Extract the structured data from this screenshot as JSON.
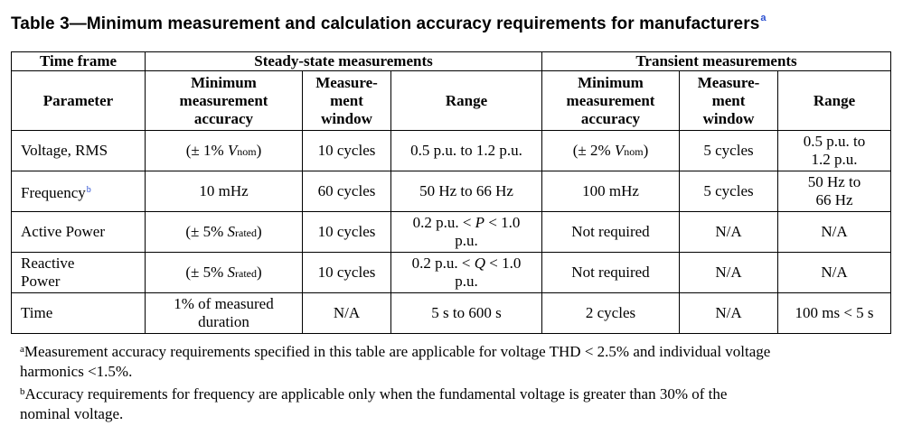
{
  "title": {
    "text": "Table 3—Minimum measurement and calculation accuracy requirements for manufacturers",
    "footnote_mark": "a"
  },
  "header": {
    "time_frame": "Time frame",
    "steady_state": "Steady-state measurements",
    "transient": "Transient measurements",
    "parameter": "Parameter",
    "min_accuracy_1": "Minimum",
    "min_accuracy_2": "measurement",
    "min_accuracy_3": "accuracy",
    "window_1": "Measure-",
    "window_2": "ment",
    "window_3": "window",
    "range": "Range"
  },
  "rows": [
    {
      "param": "Voltage, RMS",
      "param_mark": "",
      "ss_acc_pre": "(± 1% ",
      "ss_acc_var": "V",
      "ss_acc_sub": "nom",
      "ss_acc_post": ")",
      "ss_window": "10 cycles",
      "ss_range_1": "0.5 p.u. to 1.2 p.u.",
      "ss_range_2": "",
      "tr_acc_pre": "(± 2% ",
      "tr_acc_var": "V",
      "tr_acc_sub": "nom",
      "tr_acc_post": ")",
      "tr_window": "5 cycles",
      "tr_range_1": "0.5 p.u. to",
      "tr_range_2": "1.2 p.u."
    },
    {
      "param": "Frequency",
      "param_mark": "b",
      "ss_acc": "10 mHz",
      "ss_window": "60 cycles",
      "ss_range_1": "50 Hz to 66 Hz",
      "tr_acc": "100 mHz",
      "tr_window": "5 cycles",
      "tr_range_1": "50 Hz to",
      "tr_range_2": "66 Hz"
    },
    {
      "param": "Active Power",
      "ss_acc_pre": "(± 5% ",
      "ss_acc_var": "S",
      "ss_acc_sub": "rated",
      "ss_acc_post": ")",
      "ss_window": "10 cycles",
      "ss_range_pre": "0.2 p.u. < ",
      "ss_range_var": "P",
      "ss_range_post": " < 1.0",
      "ss_range_2": "p.u.",
      "tr_acc": "Not required",
      "tr_window": "N/A",
      "tr_range_1": "N/A"
    },
    {
      "param_1": "Reactive",
      "param_2": "Power",
      "ss_acc_pre": "(± 5% ",
      "ss_acc_var": "S",
      "ss_acc_sub": "rated",
      "ss_acc_post": ")",
      "ss_window": "10 cycles",
      "ss_range_pre": "0.2 p.u. < ",
      "ss_range_var": "Q",
      "ss_range_post": " < 1.0",
      "ss_range_2": "p.u.",
      "tr_acc": "Not required",
      "tr_window": "N/A",
      "tr_range_1": "N/A"
    },
    {
      "param": "Time",
      "ss_acc_1": "1% of measured",
      "ss_acc_2": "duration",
      "ss_window": "N/A",
      "ss_range_1": "5 s to 600 s",
      "tr_acc": "2 cycles",
      "tr_window": "N/A",
      "tr_range_1": "100 ms < 5 s"
    }
  ],
  "notes": [
    {
      "mark": "a",
      "line1": "Measurement accuracy requirements specified in this table are applicable for voltage THD < 2.5% and individual voltage",
      "line2": "harmonics <1.5%."
    },
    {
      "mark": "b",
      "line1": "Accuracy requirements for frequency are applicable only when the fundamental voltage is greater than 30% of the",
      "line2": "nominal voltage."
    }
  ],
  "colors": {
    "footnote_mark": "#2b4fd1",
    "text": "#000000"
  }
}
